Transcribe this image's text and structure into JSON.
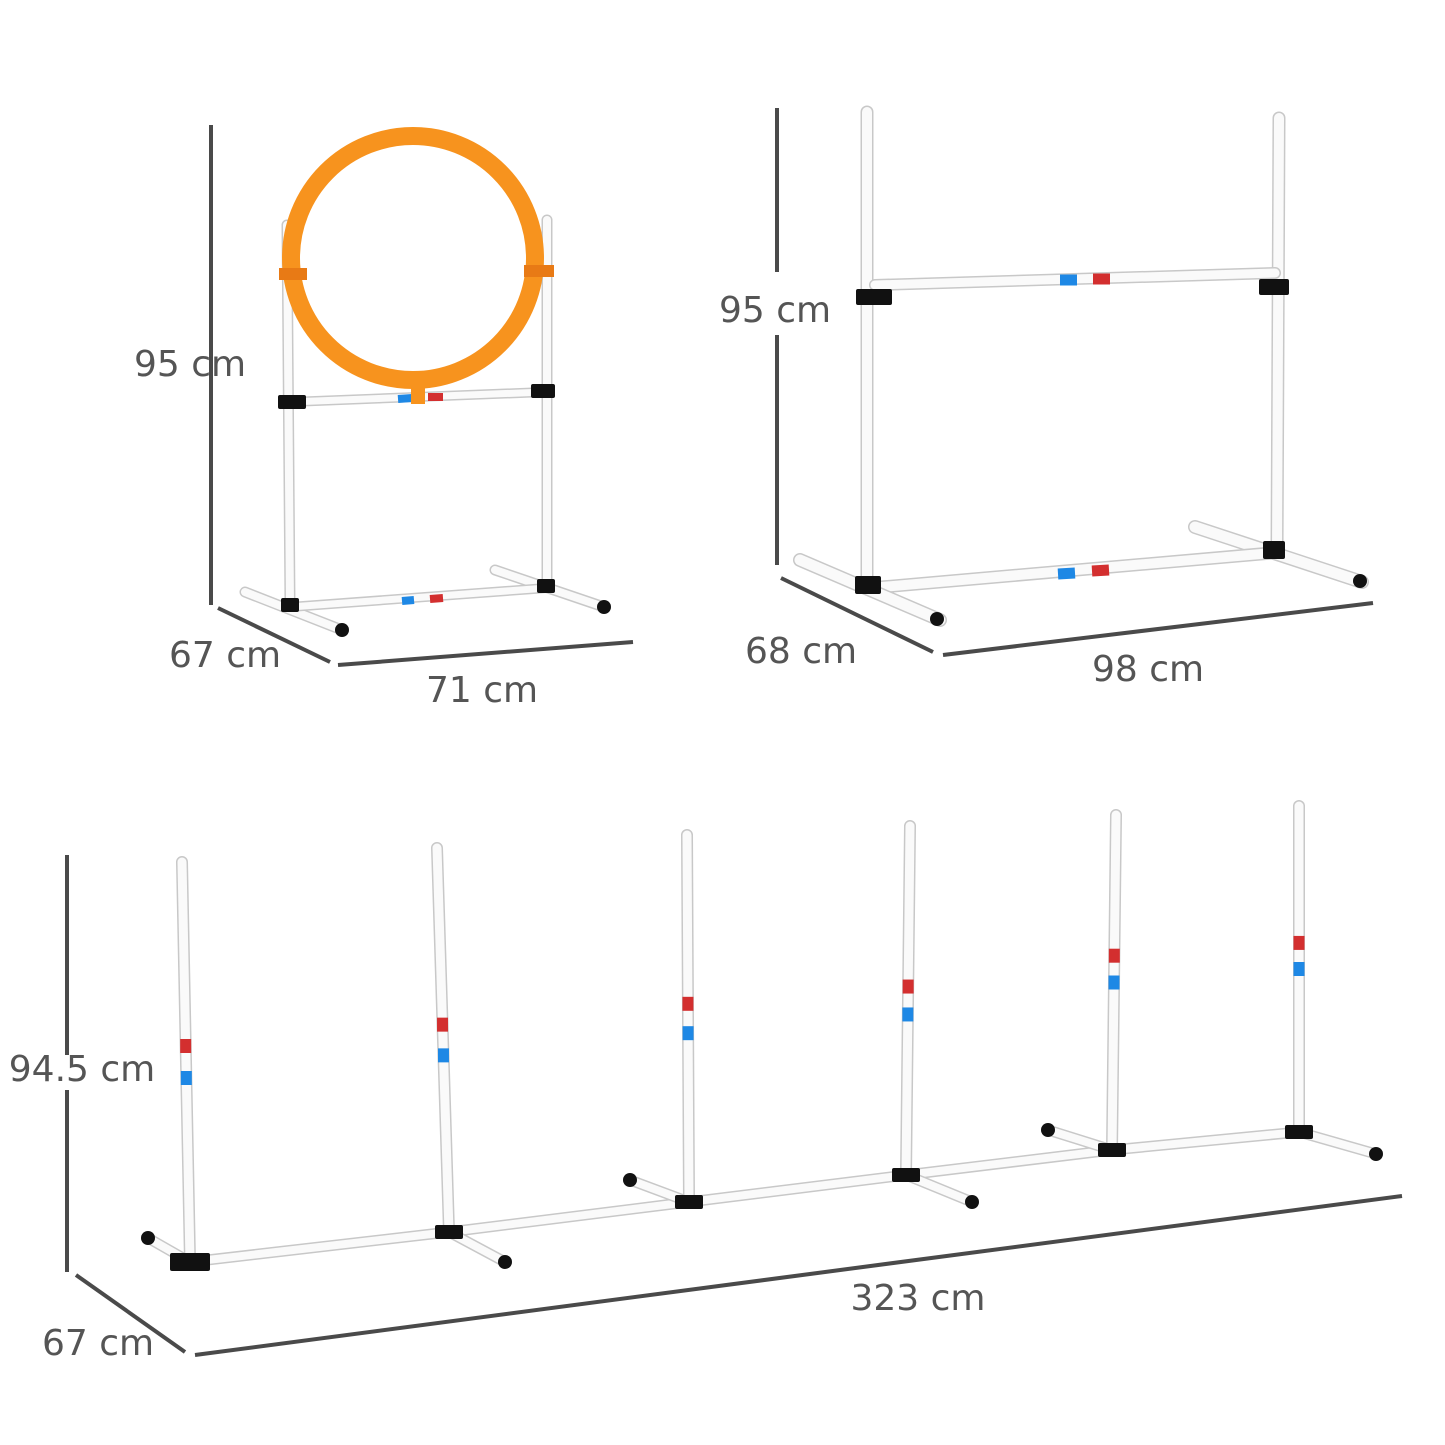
{
  "colors": {
    "hoop": "#f7931e",
    "band_blue": "#1e88e5",
    "band_red": "#d32f2f",
    "connector": "#111111",
    "dimension_line": "#4a4a4a",
    "label": "#555555"
  },
  "hoop_jump": {
    "height_label": "95 cm",
    "depth_label": "67 cm",
    "width_label": "71 cm"
  },
  "bar_jump": {
    "height_label": "95 cm",
    "depth_label": "68 cm",
    "width_label": "98 cm"
  },
  "weave_poles": {
    "height_label": "94.5 cm",
    "depth_label": "67 cm",
    "length_label": "323 cm"
  }
}
